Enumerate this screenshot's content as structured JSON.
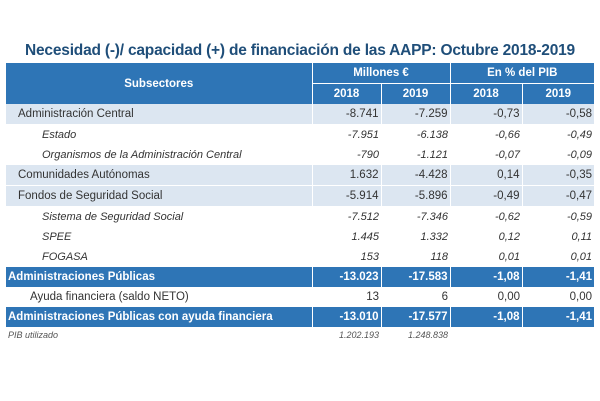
{
  "title": "Necesidad (-)/ capacidad (+) de financiación de las AAPP: Octubre 2018-2019",
  "header": {
    "subsectores": "Subsectores",
    "millones": "Millones €",
    "pib": "En % del PIB",
    "years": [
      "2018",
      "2019",
      "2018",
      "2019"
    ]
  },
  "rows": [
    {
      "label": "Administración Central",
      "values": [
        "-8.741",
        "-7.259",
        "-0,73",
        "-0,58"
      ]
    },
    {
      "label": "Estado",
      "values": [
        "-7.951",
        "-6.138",
        "-0,66",
        "-0,49"
      ]
    },
    {
      "label": "Organismos de la Administración Central",
      "values": [
        "-790",
        "-1.121",
        "-0,07",
        "-0,09"
      ]
    },
    {
      "label": "Comunidades Autónomas",
      "values": [
        "1.632",
        "-4.428",
        "0,14",
        "-0,35"
      ]
    },
    {
      "label": "Fondos de Seguridad Social",
      "values": [
        "-5.914",
        "-5.896",
        "-0,49",
        "-0,47"
      ]
    },
    {
      "label": "Sistema de Seguridad Social",
      "values": [
        "-7.512",
        "-7.346",
        "-0,62",
        "-0,59"
      ]
    },
    {
      "label": "SPEE",
      "values": [
        "1.445",
        "1.332",
        "0,12",
        "0,11"
      ]
    },
    {
      "label": "FOGASA",
      "values": [
        "153",
        "118",
        "0,01",
        "0,01"
      ]
    },
    {
      "label": "Administraciones Públicas",
      "values": [
        "-13.023",
        "-17.583",
        "-1,08",
        "-1,41"
      ]
    },
    {
      "label": "Ayuda financiera (saldo NETO)",
      "values": [
        "13",
        "6",
        "0,00",
        "0,00"
      ]
    },
    {
      "label": "Administraciones Públicas con ayuda financiera",
      "values": [
        "-13.010",
        "-17.577",
        "-1,08",
        "-1,41"
      ]
    }
  ],
  "pib": {
    "label": "PIB utilizado",
    "values": [
      "1.202.193",
      "1.248.838"
    ]
  },
  "colors": {
    "header": "#2e75b6",
    "shade": "#dce6f1",
    "title": "#1f4e79"
  }
}
